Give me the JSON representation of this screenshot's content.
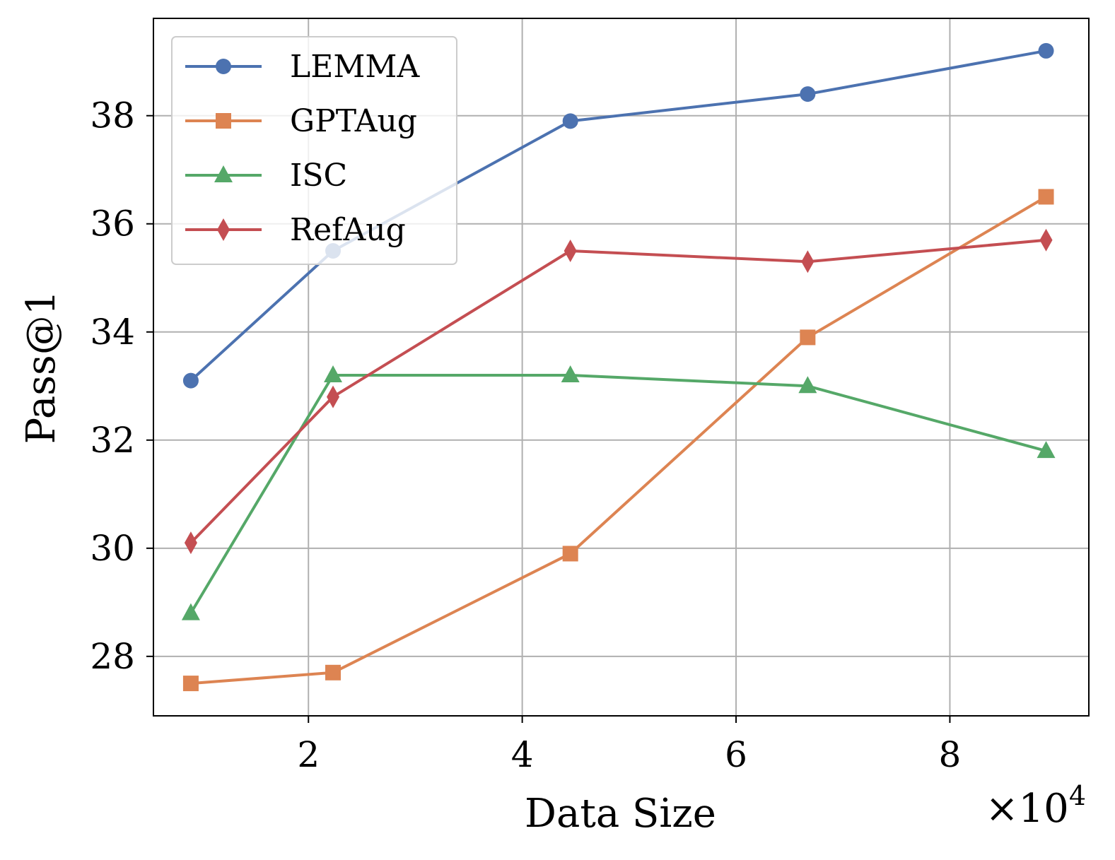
{
  "chart_data": {
    "type": "line",
    "title": "",
    "xlabel": "Data Size",
    "ylabel": "Pass@1",
    "x_multiplier_label": "×10",
    "x_multiplier_exponent": "4",
    "x": [
      0.9,
      2.23,
      4.45,
      6.67,
      8.9
    ],
    "xlim": [
      0.55,
      9.3
    ],
    "ylim": [
      26.9,
      39.8
    ],
    "xticks": [
      2,
      4,
      6,
      8
    ],
    "yticks": [
      28,
      30,
      32,
      34,
      36,
      38
    ],
    "grid": true,
    "legend_position": "top-left",
    "series": [
      {
        "name": "LEMMA",
        "color": "#4c72b0",
        "marker": "circle",
        "values": [
          33.1,
          35.5,
          37.9,
          38.4,
          39.2
        ]
      },
      {
        "name": "GPTAug",
        "color": "#dd8452",
        "marker": "square",
        "values": [
          27.5,
          27.7,
          29.9,
          33.9,
          36.5
        ]
      },
      {
        "name": "ISC",
        "color": "#55a868",
        "marker": "triangle",
        "values": [
          28.8,
          33.2,
          33.2,
          33.0,
          31.8
        ]
      },
      {
        "name": "RefAug",
        "color": "#c44e52",
        "marker": "diamond",
        "values": [
          30.1,
          32.8,
          35.5,
          35.3,
          35.7
        ]
      }
    ]
  }
}
